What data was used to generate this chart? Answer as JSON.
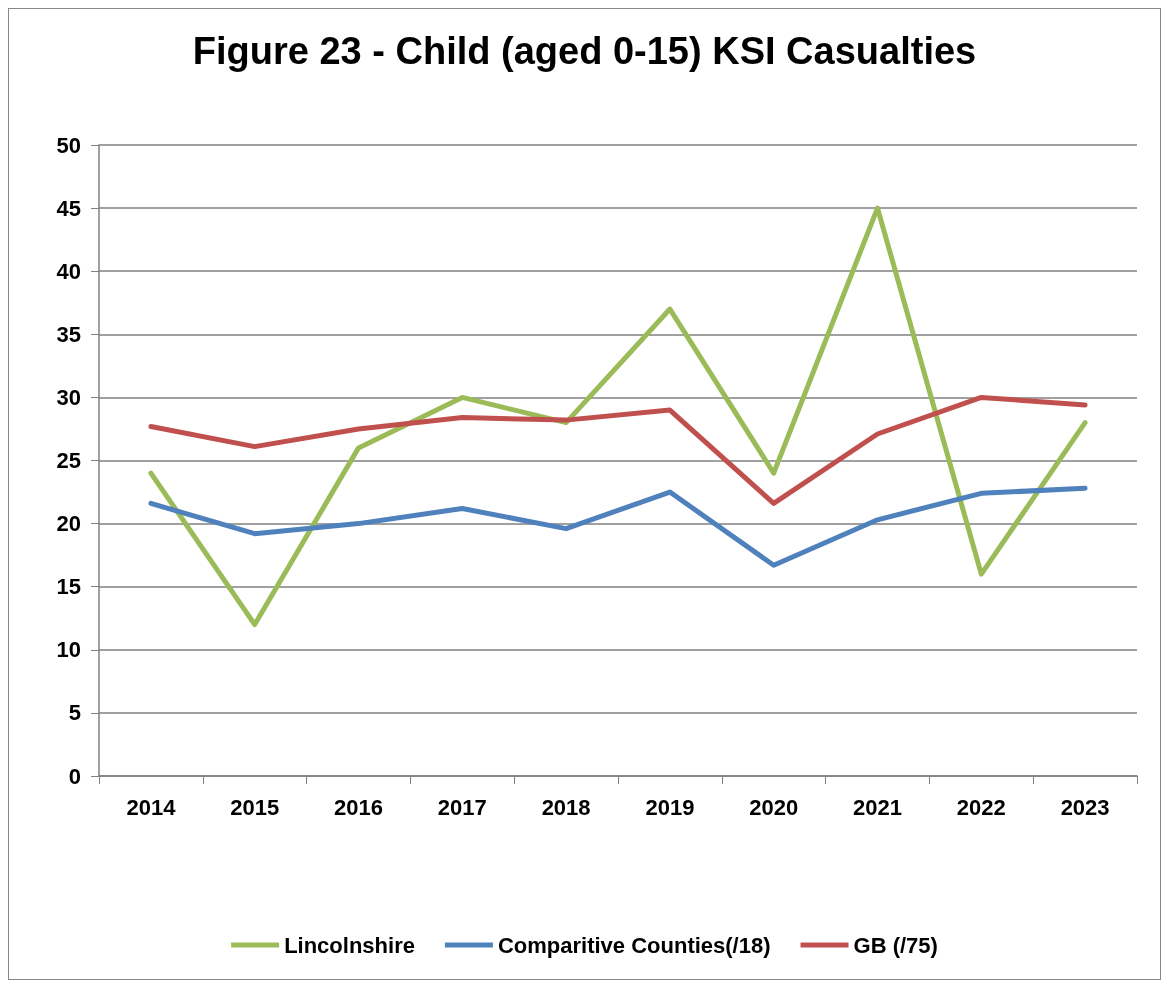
{
  "chart_data": {
    "type": "line",
    "title": "Figure 23 - Child (aged 0-15) KSI Casualties",
    "categories": [
      "2014",
      "2015",
      "2016",
      "2017",
      "2018",
      "2019",
      "2020",
      "2021",
      "2022",
      "2023"
    ],
    "series": [
      {
        "name": "Lincolnshire",
        "color": "#9bbb59",
        "values": [
          24,
          12,
          26,
          30,
          28,
          37,
          24,
          45,
          16,
          28
        ]
      },
      {
        "name": "Comparitive Counties(/18)",
        "color": "#4f81bd",
        "values": [
          21.6,
          19.2,
          20.0,
          21.2,
          19.6,
          22.5,
          16.7,
          20.3,
          22.4,
          22.8
        ]
      },
      {
        "name": "GB (/75)",
        "color": "#c0504d",
        "values": [
          27.7,
          26.1,
          27.5,
          28.4,
          28.2,
          29.0,
          21.6,
          27.1,
          30.0,
          29.4
        ]
      }
    ],
    "ylim": [
      0,
      50
    ],
    "yticks": [
      0,
      5,
      10,
      15,
      20,
      25,
      30,
      35,
      40,
      45,
      50
    ],
    "grid": "y",
    "legend": "bottom",
    "marker": "none",
    "line_style": "solid"
  }
}
